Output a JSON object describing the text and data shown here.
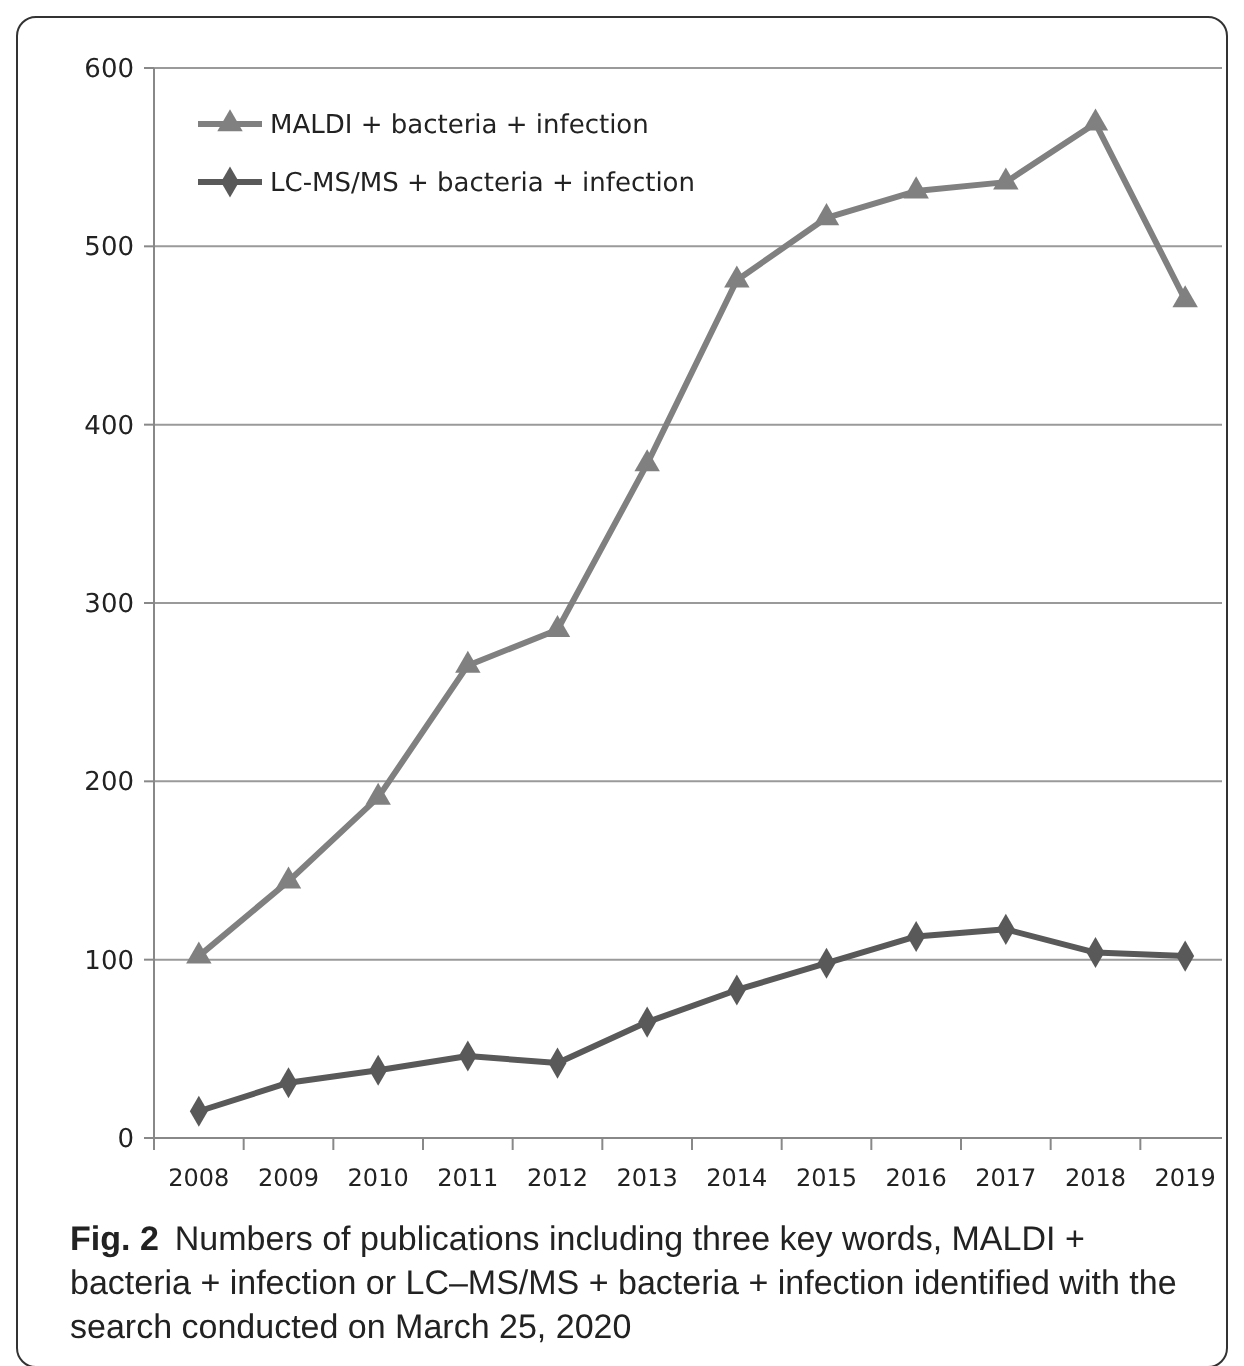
{
  "chart_data": {
    "type": "line",
    "categories": [
      "2008",
      "2009",
      "2010",
      "2011",
      "2012",
      "2013",
      "2014",
      "2015",
      "2016",
      "2017",
      "2018",
      "2019"
    ],
    "series": [
      {
        "name": "MALDI + bacteria + infection",
        "color": "#808080",
        "marker": "triangle",
        "values": [
          102,
          144,
          191,
          265,
          285,
          378,
          481,
          516,
          531,
          536,
          569,
          470
        ]
      },
      {
        "name": "LC-MS/MS + bacteria + infection",
        "color": "#595959",
        "marker": "diamond",
        "values": [
          15,
          31,
          38,
          46,
          42,
          65,
          83,
          98,
          113,
          117,
          104,
          102
        ]
      }
    ],
    "ylim": [
      0,
      600
    ],
    "yticks": [
      0,
      100,
      200,
      300,
      400,
      500,
      600
    ],
    "grid": "y",
    "legend": "top left",
    "annotations": [
      "Fig. 2",
      "Numbers of publications including three key words, MALDI + bacteria + infection or LC–MS/MS + bacteria + infection identified with the search conducted on March 25, 2020"
    ]
  }
}
